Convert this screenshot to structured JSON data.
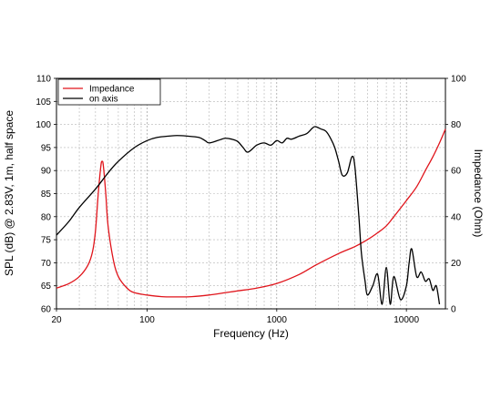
{
  "chart_data": {
    "type": "line",
    "xlabel": "Frequency (Hz)",
    "ylabel": "SPL (dB) @ 2.83V, 1m, half space",
    "y2label": "Impedance (Ohm)",
    "xscale": "log",
    "xlim": [
      20,
      20000
    ],
    "ylim": [
      60,
      110
    ],
    "y2lim": [
      0,
      100
    ],
    "grid": true,
    "legend_position": "top-left",
    "x_ticks": [
      "20",
      "100",
      "1000",
      "10000"
    ],
    "y_ticks": [
      "60",
      "65",
      "70",
      "75",
      "80",
      "85",
      "90",
      "95",
      "100",
      "105",
      "110"
    ],
    "y2_ticks": [
      "0",
      "20",
      "40",
      "60",
      "80",
      "100"
    ],
    "series": [
      {
        "name": "Impedance",
        "axis": "right",
        "color": "#e0141b",
        "x": [
          20,
          25,
          30,
          35,
          38,
          40,
          42,
          44,
          45,
          46,
          48,
          50,
          55,
          60,
          70,
          80,
          100,
          130,
          170,
          220,
          300,
          400,
          500,
          700,
          1000,
          1500,
          2000,
          3000,
          4000,
          5000,
          6000,
          7000,
          8000,
          10000,
          12000,
          14000,
          16000,
          18000,
          20000
        ],
        "values": [
          9,
          11,
          14,
          19,
          25,
          34,
          50,
          62,
          64,
          62,
          50,
          36,
          21,
          14,
          9,
          7,
          6,
          5.3,
          5.2,
          5.3,
          6,
          7,
          7.8,
          9,
          11,
          15,
          19,
          24,
          27,
          30,
          33,
          36,
          40,
          47,
          53,
          60,
          66,
          72,
          78
        ]
      },
      {
        "name": "on axis",
        "axis": "left",
        "color": "#000000",
        "x": [
          20,
          25,
          30,
          40,
          50,
          60,
          80,
          100,
          120,
          150,
          170,
          200,
          250,
          280,
          300,
          350,
          400,
          450,
          500,
          550,
          600,
          700,
          800,
          900,
          1000,
          1100,
          1200,
          1300,
          1500,
          1700,
          1900,
          2000,
          2200,
          2400,
          2600,
          2800,
          3000,
          3200,
          3500,
          3800,
          4000,
          4300,
          4500,
          4800,
          5000,
          5500,
          6000,
          6500,
          7000,
          7500,
          8000,
          9000,
          10000,
          10500,
          11000,
          12000,
          13000,
          14000,
          15000,
          16000,
          17000,
          18000
        ],
        "values": [
          76,
          79,
          82,
          86,
          89.5,
          92,
          95,
          96.5,
          97.2,
          97.5,
          97.6,
          97.5,
          97.2,
          96.5,
          96.0,
          96.5,
          97.0,
          96.8,
          96.3,
          95.0,
          94.0,
          95.5,
          96.0,
          95.5,
          96.5,
          96.0,
          97.0,
          96.8,
          97.5,
          98.0,
          99.3,
          99.5,
          99.0,
          98.5,
          97.0,
          95.0,
          92.0,
          89.0,
          89.5,
          93.0,
          91.0,
          80.0,
          72.0,
          66.0,
          63.0,
          65.0,
          67.5,
          61.0,
          69.0,
          61.0,
          67.0,
          62.0,
          65.0,
          70.0,
          73.0,
          67.0,
          68.0,
          66.0,
          66.5,
          64.0,
          65.0,
          61.0
        ]
      }
    ]
  }
}
